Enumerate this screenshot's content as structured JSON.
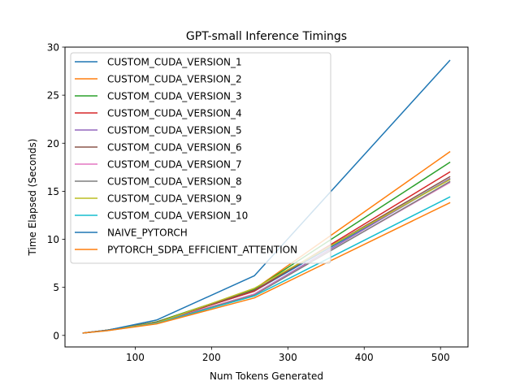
{
  "chart_data": {
    "type": "line",
    "title": "GPT-small Inference Timings",
    "xlabel": "Num Tokens Generated",
    "ylabel": "Time Elapsed (Seconds)",
    "xlim": [
      8,
      536
    ],
    "ylim": [
      -1.2,
      30
    ],
    "xticks": [
      100,
      200,
      300,
      400,
      500
    ],
    "yticks": [
      0,
      5,
      10,
      15,
      20,
      25,
      30
    ],
    "grid": false,
    "legend_position": "upper-left",
    "x": [
      32,
      64,
      128,
      256,
      512
    ],
    "series": [
      {
        "name": "CUSTOM_CUDA_VERSION_1",
        "color": "#1f77b4",
        "values": [
          0.25,
          0.55,
          1.4,
          4.6,
          16.3
        ]
      },
      {
        "name": "CUSTOM_CUDA_VERSION_2",
        "color": "#ff7f0e",
        "values": [
          0.25,
          0.55,
          1.4,
          4.8,
          19.1
        ]
      },
      {
        "name": "CUSTOM_CUDA_VERSION_3",
        "color": "#2ca02c",
        "values": [
          0.25,
          0.55,
          1.4,
          4.8,
          18.0
        ]
      },
      {
        "name": "CUSTOM_CUDA_VERSION_4",
        "color": "#d62728",
        "values": [
          0.25,
          0.55,
          1.35,
          4.6,
          17.0
        ]
      },
      {
        "name": "CUSTOM_CUDA_VERSION_5",
        "color": "#9467bd",
        "values": [
          0.25,
          0.55,
          1.3,
          4.3,
          16.3
        ]
      },
      {
        "name": "CUSTOM_CUDA_VERSION_6",
        "color": "#8c564b",
        "values": [
          0.25,
          0.55,
          1.35,
          4.7,
          16.5
        ]
      },
      {
        "name": "CUSTOM_CUDA_VERSION_7",
        "color": "#e377c2",
        "values": [
          0.25,
          0.55,
          1.3,
          4.3,
          15.9
        ]
      },
      {
        "name": "CUSTOM_CUDA_VERSION_8",
        "color": "#7f7f7f",
        "values": [
          0.25,
          0.55,
          1.3,
          4.2,
          16.0
        ]
      },
      {
        "name": "CUSTOM_CUDA_VERSION_9",
        "color": "#bcbd22",
        "values": [
          0.25,
          0.55,
          1.3,
          4.9,
          16.2
        ]
      },
      {
        "name": "CUSTOM_CUDA_VERSION_10",
        "color": "#17becf",
        "values": [
          0.25,
          0.5,
          1.25,
          4.1,
          14.4
        ]
      },
      {
        "name": "NAIVE_PYTORCH",
        "color": "#1f77b4",
        "values": [
          0.25,
          0.55,
          1.6,
          6.2,
          28.6
        ]
      },
      {
        "name": "PYTORCH_SDPA_EFFICIENT_ATTENTION",
        "color": "#ff7f0e",
        "values": [
          0.25,
          0.5,
          1.2,
          3.9,
          13.8
        ]
      }
    ]
  }
}
